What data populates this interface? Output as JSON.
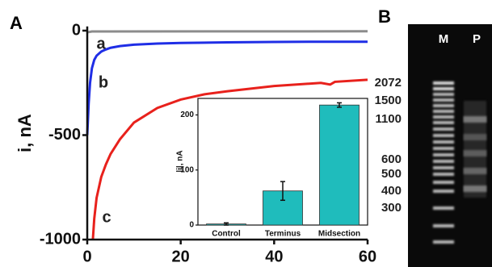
{
  "panels": {
    "left": "A",
    "right": "B"
  },
  "chart_data": [
    {
      "type": "line",
      "ylabel": "i, nA",
      "xlim": [
        0,
        60
      ],
      "xticks": [
        0,
        20,
        40,
        60
      ],
      "ylim": [
        -1000,
        20
      ],
      "yticks": [
        -1000,
        -500,
        0
      ],
      "series": [
        {
          "name": "a",
          "color": "#8c8c8c",
          "x": [
            0,
            1,
            60
          ],
          "values": [
            -8,
            -4,
            -3
          ]
        },
        {
          "name": "b",
          "color": "#1f2ee6",
          "x": [
            0,
            0.3,
            0.6,
            1,
            1.5,
            2,
            3,
            4,
            5,
            7,
            10,
            15,
            20,
            30,
            40,
            50,
            60
          ],
          "values": [
            -500,
            -350,
            -250,
            -180,
            -140,
            -120,
            -100,
            -90,
            -82,
            -74,
            -67,
            -62,
            -59,
            -56,
            -54,
            -53,
            -53
          ]
        },
        {
          "name": "c",
          "color": "#e8211c",
          "x": [
            1.2,
            1.5,
            2,
            3,
            4,
            5,
            7,
            10,
            15,
            20,
            25,
            30,
            40,
            50,
            52,
            53,
            60
          ],
          "values": [
            -1000,
            -900,
            -800,
            -700,
            -640,
            -590,
            -520,
            -440,
            -370,
            -330,
            -305,
            -290,
            -265,
            -250,
            -258,
            -245,
            -235
          ]
        }
      ]
    },
    {
      "type": "bar",
      "ylabel": "|i|, nA",
      "color": "#1fbcbc",
      "categories": [
        "Control",
        "Terminus",
        "Midsection"
      ],
      "values": [
        2,
        62,
        218
      ],
      "errors": [
        2,
        17,
        4
      ],
      "ylim": [
        0,
        230
      ],
      "yticks": [
        0,
        100,
        200
      ]
    }
  ],
  "gel": {
    "lanes": [
      "M",
      "P"
    ],
    "ladder_labels": [
      2072,
      1500,
      1100,
      600,
      500,
      400,
      300
    ]
  }
}
